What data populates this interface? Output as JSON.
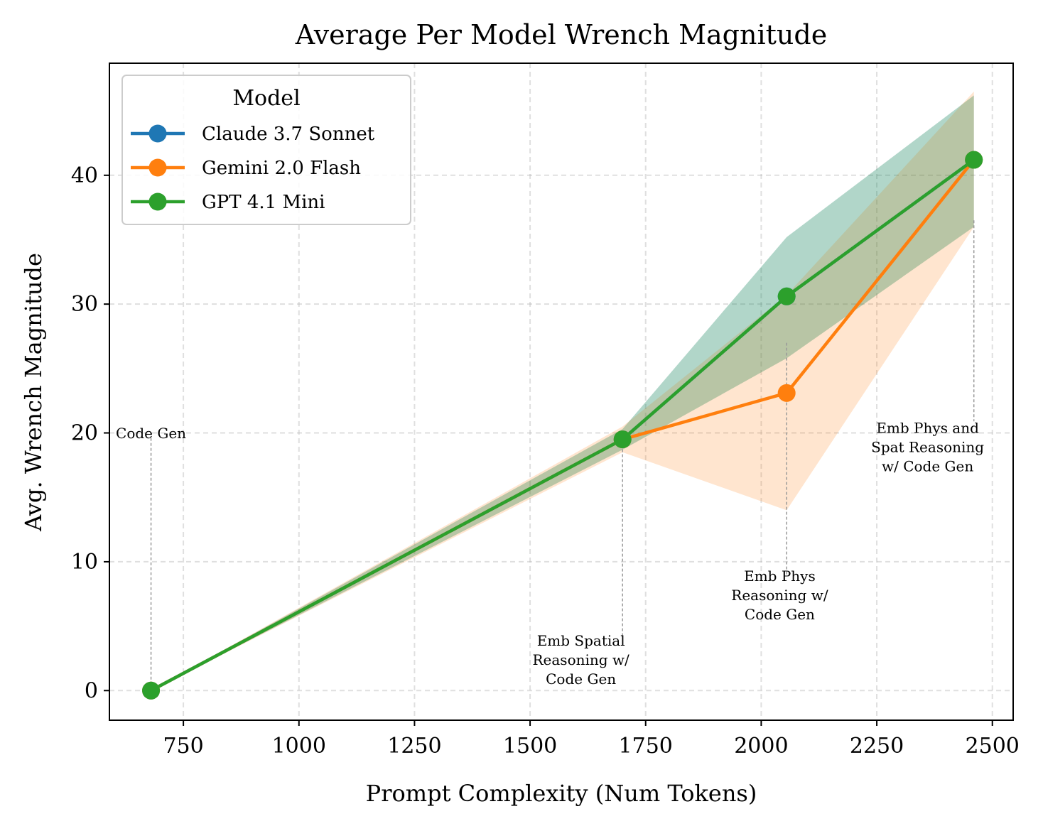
{
  "chart_data": {
    "type": "line",
    "title": "Average Per Model Wrench Magnitude",
    "xlabel": "Prompt Complexity (Num Tokens)",
    "ylabel": "Avg. Wrench Magnitude",
    "xlim": [
      590,
      2545
    ],
    "ylim": [
      -2.3,
      48.7
    ],
    "xticks": [
      750,
      1000,
      1250,
      1500,
      1750,
      2000,
      2250,
      2500
    ],
    "yticks": [
      0,
      10,
      20,
      30,
      40
    ],
    "grid": true,
    "legend": {
      "title": "Model",
      "placement": "top-left"
    },
    "series": [
      {
        "name": "Claude 3.7 Sonnet",
        "color": "#1f77b4",
        "x": [
          680,
          1700,
          2055,
          2460
        ],
        "y": [
          0,
          19.5,
          30.6,
          41.2
        ],
        "band_low": [
          0,
          18.7,
          25.8,
          36.0
        ],
        "band_high": [
          0,
          20.3,
          35.2,
          46.2
        ]
      },
      {
        "name": "Gemini 2.0 Flash",
        "color": "#ff7f0e",
        "x": [
          680,
          1700,
          2055,
          2460
        ],
        "y": [
          0,
          19.5,
          23.1,
          41.2
        ],
        "band_low": [
          0,
          18.5,
          14.0,
          36.0
        ],
        "band_high": [
          0,
          20.5,
          30.7,
          46.5
        ]
      },
      {
        "name": "GPT 4.1 Mini",
        "color": "#2ca02c",
        "x": [
          680,
          1700,
          2055,
          2460
        ],
        "y": [
          0,
          19.5,
          30.6,
          41.2
        ],
        "band_low": [
          0,
          18.7,
          25.8,
          36.0
        ],
        "band_high": [
          0,
          20.3,
          35.2,
          46.2
        ]
      }
    ],
    "annotations": [
      {
        "lines": [
          "Code Gen"
        ],
        "x": 680,
        "text_x": 680,
        "text_y": 19.6,
        "line_from": 0,
        "line_to": 19.6
      },
      {
        "lines": [
          "Emb Spatial",
          "Reasoning w/",
          "Code Gen"
        ],
        "x": 1700,
        "text_x": 1610,
        "text_y": 3.5,
        "line_from": 4.0,
        "line_to": 19.5
      },
      {
        "lines": [
          "Emb Phys",
          "Reasoning w/",
          "Code Gen"
        ],
        "x": 2055,
        "text_x": 2040,
        "text_y": 8.5,
        "line_from": 9.0,
        "line_to": 27.0
      },
      {
        "lines": [
          "Emb Phys and",
          "Spat Reasoning",
          "w/ Code Gen"
        ],
        "x": 2460,
        "text_x": 2360,
        "text_y": 20.0,
        "line_from": 20.9,
        "line_to": 36.5
      }
    ]
  }
}
